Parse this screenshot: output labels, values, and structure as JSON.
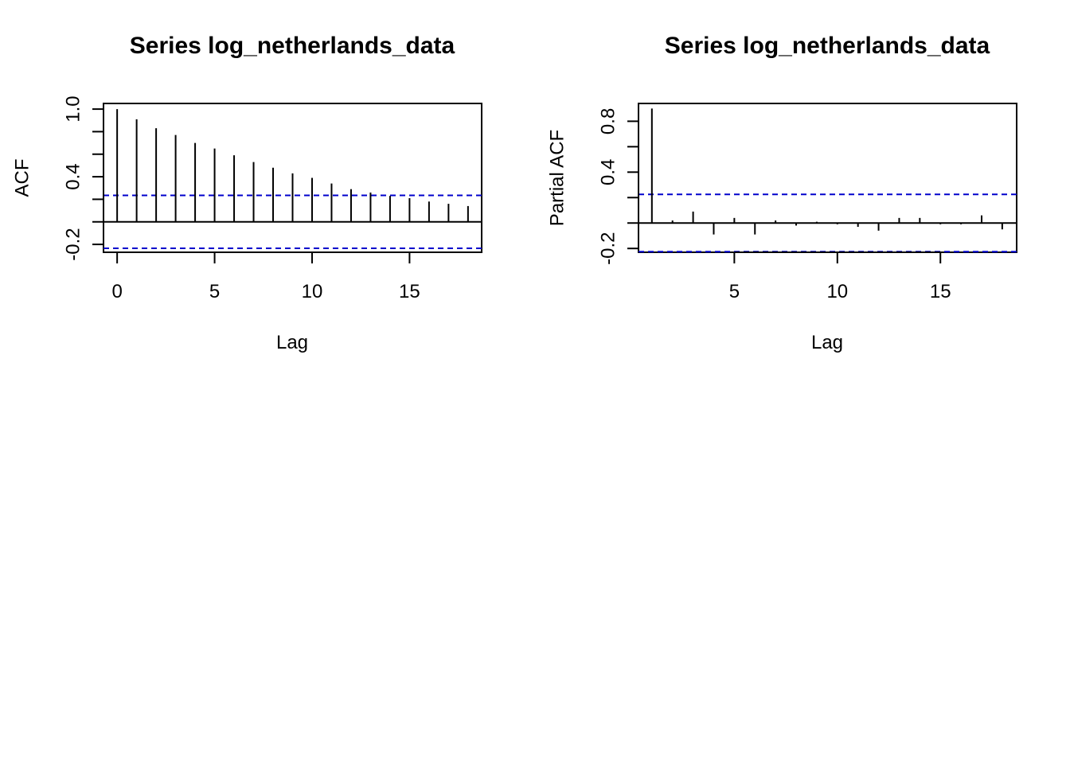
{
  "chart_data": [
    {
      "type": "bar",
      "subtype": "acf",
      "title": "Series  log_netherlands_data",
      "xlabel": "Lag",
      "ylabel": "ACF",
      "xlim": [
        -0.7,
        18.7
      ],
      "ylim": [
        -0.27,
        1.05
      ],
      "xticks": [
        0,
        5,
        10,
        15
      ],
      "xtick_labels": [
        "0",
        "5",
        "10",
        "15"
      ],
      "yticks": [
        -0.2,
        0.0,
        0.2,
        0.4,
        0.6,
        0.8,
        1.0
      ],
      "ytick_labels": [
        "-0.2",
        "",
        "",
        "0.4",
        "",
        "",
        "1.0"
      ],
      "confidence_bound": 0.235,
      "confidence_color": "#0000cc",
      "lags": [
        0,
        1,
        2,
        3,
        4,
        5,
        6,
        7,
        8,
        9,
        10,
        11,
        12,
        13,
        14,
        15,
        16,
        17,
        18
      ],
      "values": [
        1.0,
        0.91,
        0.83,
        0.77,
        0.7,
        0.65,
        0.59,
        0.53,
        0.48,
        0.43,
        0.39,
        0.34,
        0.29,
        0.26,
        0.23,
        0.21,
        0.18,
        0.16,
        0.14
      ],
      "grid": false
    },
    {
      "type": "bar",
      "subtype": "pacf",
      "title": "Series  log_netherlands_data",
      "xlabel": "Lag",
      "ylabel": "Partial ACF",
      "xlim": [
        0.35,
        18.7
      ],
      "ylim": [
        -0.23,
        0.94
      ],
      "xticks": [
        5,
        10,
        15
      ],
      "xtick_labels": [
        "5",
        "10",
        "15"
      ],
      "yticks": [
        -0.2,
        0.0,
        0.2,
        0.4,
        0.6,
        0.8
      ],
      "ytick_labels": [
        "-0.2",
        "",
        "",
        "0.4",
        "",
        "0.8"
      ],
      "confidence_bound": 0.225,
      "confidence_color": "#0000cc",
      "lags": [
        1,
        2,
        3,
        4,
        5,
        6,
        7,
        8,
        9,
        10,
        11,
        12,
        13,
        14,
        15,
        16,
        17,
        18
      ],
      "values": [
        0.9,
        0.02,
        0.09,
        -0.09,
        0.04,
        -0.09,
        0.02,
        -0.02,
        0.01,
        -0.01,
        -0.03,
        -0.06,
        0.04,
        0.04,
        -0.01,
        -0.01,
        0.06,
        -0.05
      ],
      "grid": false
    }
  ]
}
